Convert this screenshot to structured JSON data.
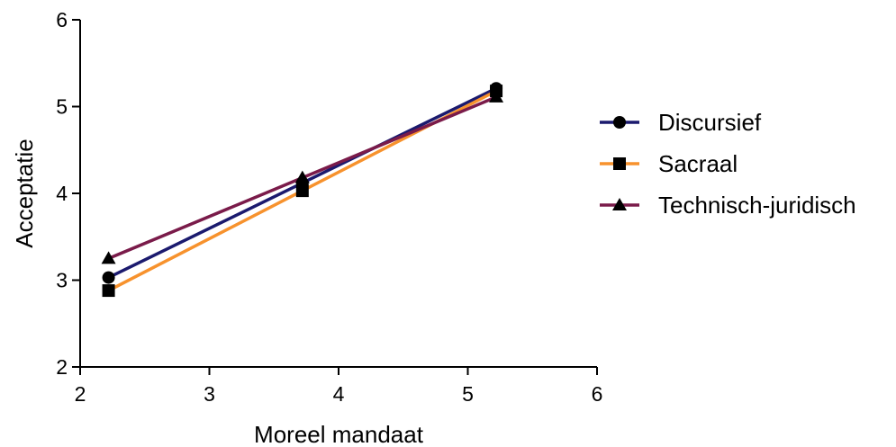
{
  "chart_data": {
    "type": "line",
    "title": "",
    "xlabel": "Moreel mandaat",
    "ylabel": "Acceptatie",
    "xlim": [
      2,
      6
    ],
    "ylim": [
      2,
      6
    ],
    "xticks": [
      "2",
      "3",
      "4",
      "5",
      "6"
    ],
    "yticks": [
      "2",
      "3",
      "4",
      "5",
      "6"
    ],
    "grid": false,
    "legend_position": "right",
    "series": [
      {
        "name": "Discursief",
        "marker": "circle",
        "color": "#1b1a6e",
        "x": [
          2.22,
          3.72,
          5.22
        ],
        "y": [
          3.03,
          4.12,
          5.21
        ]
      },
      {
        "name": "Sacraal",
        "marker": "square",
        "color": "#f7922d",
        "x": [
          2.22,
          3.72,
          5.22
        ],
        "y": [
          2.88,
          4.03,
          5.18
        ]
      },
      {
        "name": "Technisch-juridisch",
        "marker": "triangle",
        "color": "#7a1b4a",
        "x": [
          2.22,
          3.72,
          5.22
        ],
        "y": [
          3.25,
          4.18,
          5.11
        ]
      }
    ]
  }
}
